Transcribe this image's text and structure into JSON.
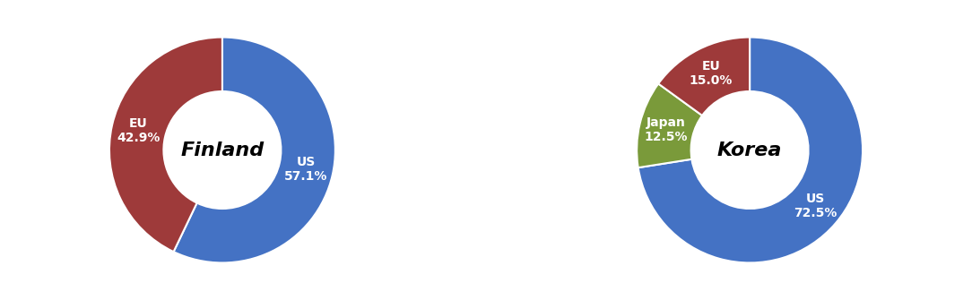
{
  "chart_data": [
    {
      "type": "pie",
      "title": "Finland",
      "categories": [
        "US",
        "EU"
      ],
      "values": [
        57.1,
        42.9
      ],
      "value_labels": [
        "US\n57.1%",
        "EU\n42.9%"
      ],
      "colors": [
        "#4472C4",
        "#9E3A3A"
      ],
      "data_labels": true
    },
    {
      "type": "pie",
      "title": "Korea",
      "categories": [
        "US",
        "Japan",
        "EU"
      ],
      "values": [
        72.5,
        12.5,
        15.0
      ],
      "value_labels": [
        "US\n72.5%",
        "Japan\n12.5%",
        "EU\n15.0%"
      ],
      "colors": [
        "#4472C4",
        "#7A9A3A",
        "#9E3A3A"
      ],
      "data_labels": true
    }
  ]
}
